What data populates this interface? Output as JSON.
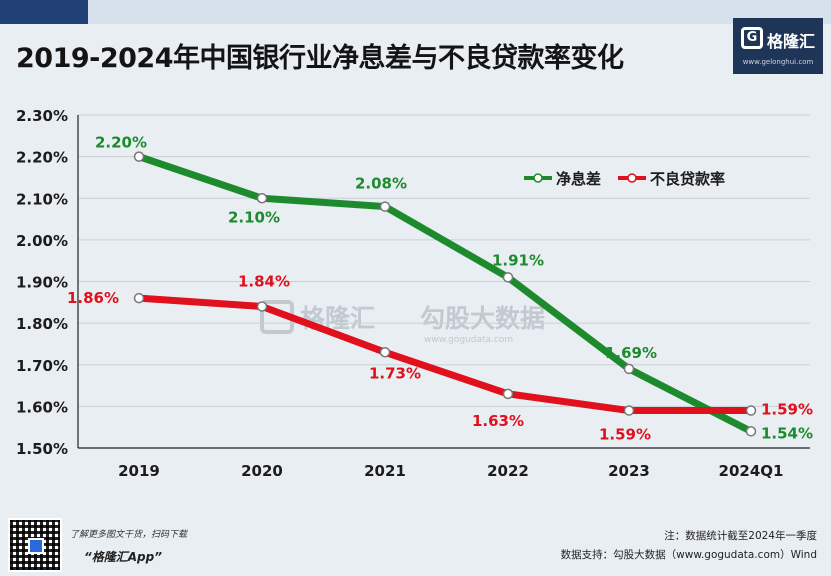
{
  "title": "2019-2024年中国银行业净息差与不良贷款率变化",
  "logo": {
    "name": "格隆汇",
    "url": "www.gelonghui.com"
  },
  "watermark": {
    "brand": "格隆汇",
    "brand2": "勾股大数据",
    "url": "www.gogudata.com"
  },
  "footer": {
    "caption": "了解更多图文干货，扫码下载",
    "app": "“格隆汇App”",
    "note": "注：数据统计截至2024年一季度",
    "source": "数据支持：勾股大数据（www.gogudata.com）Wind"
  },
  "chart_data": {
    "type": "line",
    "categories": [
      "2019",
      "2020",
      "2021",
      "2022",
      "2023",
      "2024Q1"
    ],
    "y_ticks": [
      "1.50%",
      "1.60%",
      "1.70%",
      "1.80%",
      "1.90%",
      "2.00%",
      "2.10%",
      "2.20%",
      "2.30%"
    ],
    "ylim": [
      1.5,
      2.3
    ],
    "grid": true,
    "legend_position": "top-right",
    "series": [
      {
        "name": "净息差",
        "color": "#1e8a2e",
        "values": [
          2.2,
          2.1,
          2.08,
          1.91,
          1.69,
          1.54
        ],
        "labels": [
          "2.20%",
          "2.10%",
          "2.08%",
          "1.91%",
          "1.69%",
          "1.54%"
        ]
      },
      {
        "name": "不良贷款率",
        "color": "#e0101c",
        "values": [
          1.86,
          1.84,
          1.73,
          1.63,
          1.59,
          1.59
        ],
        "labels": [
          "1.86%",
          "1.84%",
          "1.73%",
          "1.63%",
          "1.59%",
          "1.59%"
        ]
      }
    ]
  }
}
